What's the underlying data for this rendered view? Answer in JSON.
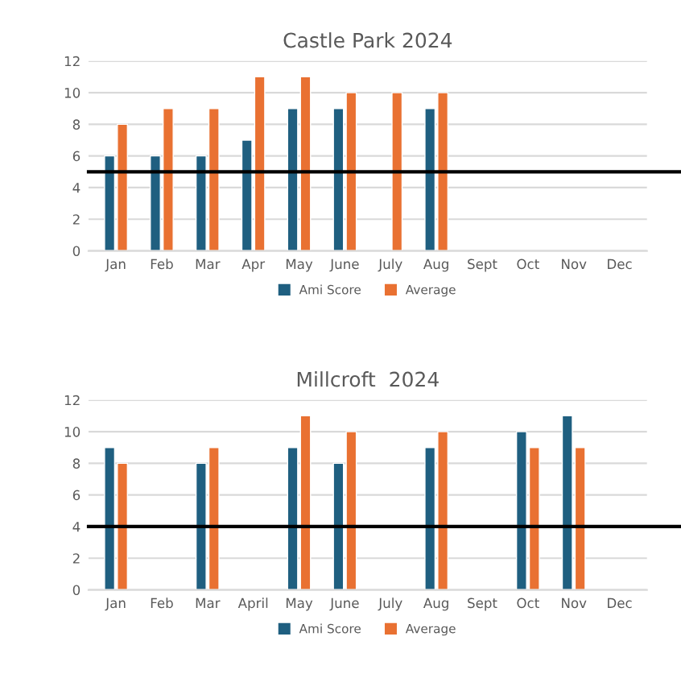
{
  "chart_data": [
    {
      "type": "bar",
      "title": "Castle Park 2024",
      "categories": [
        "Jan",
        "Feb",
        "Mar",
        "Apr",
        "May",
        "June",
        "July",
        "Aug",
        "Sept",
        "Oct",
        "Nov",
        "Dec"
      ],
      "series": [
        {
          "name": "Ami Score",
          "color": "#1f5f80",
          "values": [
            6,
            6,
            6,
            7,
            9,
            9,
            null,
            9,
            null,
            null,
            null,
            null
          ]
        },
        {
          "name": "Average",
          "color": "#e97132",
          "values": [
            8,
            9,
            9,
            11,
            11,
            10,
            10,
            10,
            null,
            null,
            null,
            null
          ]
        }
      ],
      "ylim": [
        0,
        12
      ],
      "yticks": [
        0,
        2,
        4,
        6,
        8,
        10,
        12
      ],
      "grid": "y",
      "legend": "bottom",
      "ref_lines": [
        {
          "axis": "y",
          "value": 5,
          "color": "#000000"
        }
      ]
    },
    {
      "type": "bar",
      "title": "Millcroft  2024",
      "categories": [
        "Jan",
        "Feb",
        "Mar",
        "April",
        "May",
        "June",
        "July",
        "Aug",
        "Sept",
        "Oct",
        "Nov",
        "Dec"
      ],
      "series": [
        {
          "name": "Ami Score",
          "color": "#1f5f80",
          "values": [
            9,
            null,
            8,
            null,
            9,
            8,
            null,
            9,
            null,
            10,
            11,
            null
          ]
        },
        {
          "name": "Average",
          "color": "#e97132",
          "values": [
            8,
            null,
            9,
            null,
            11,
            10,
            null,
            10,
            null,
            9,
            9,
            null
          ]
        }
      ],
      "ylim": [
        0,
        12
      ],
      "yticks": [
        0,
        2,
        4,
        6,
        8,
        10,
        12
      ],
      "grid": "y",
      "legend": "bottom",
      "ref_lines": [
        {
          "axis": "y",
          "value": 4,
          "color": "#000000"
        }
      ]
    }
  ]
}
